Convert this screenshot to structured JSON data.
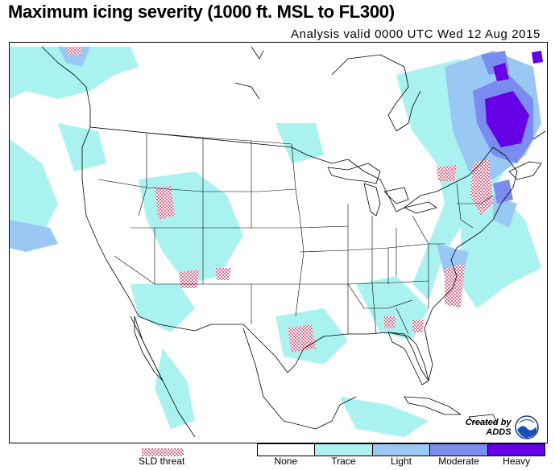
{
  "title": "Maximum icing severity (1000 ft. MSL to FL300)",
  "subtitle": "Analysis valid 0000 UTC Wed 12 Aug 2015",
  "credit": {
    "line1": "Created by",
    "line2": "ADDS",
    "logo_icon": "noaa-logo-icon"
  },
  "sld": {
    "label": "SLD threat",
    "color": "#e06a8a"
  },
  "legend": [
    {
      "label": "None",
      "color": "#ffffff"
    },
    {
      "label": "Trace",
      "color": "#aaf2f0"
    },
    {
      "label": "Light",
      "color": "#99c8f5"
    },
    {
      "label": "Moderate",
      "color": "#7a8cf0"
    },
    {
      "label": "Heavy",
      "color": "#6600e6"
    }
  ],
  "colors": {
    "trace": "#aaf2f0",
    "light": "#99c8f5",
    "moderate": "#7a8cf0",
    "heavy": "#6600e6",
    "sld": "#e06a8a",
    "boundary": "#000000"
  }
}
